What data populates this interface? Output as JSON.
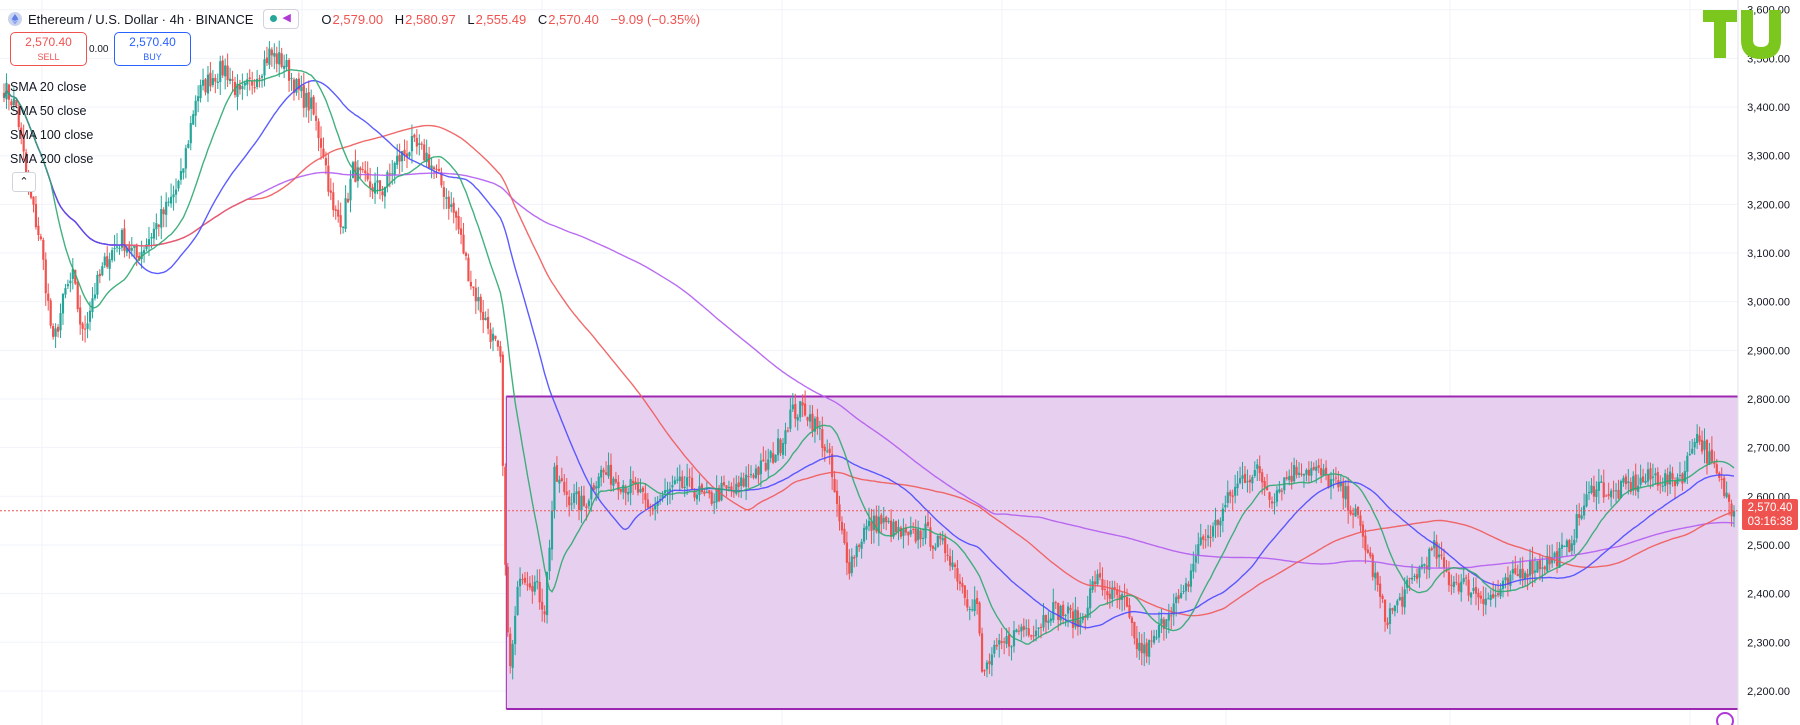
{
  "header": {
    "symbol_title": "Ethereum / U.S. Dollar · 4h · BINANCE",
    "ohlc": {
      "o_label": "O",
      "o": "2,579.00",
      "h_label": "H",
      "h": "2,580.97",
      "l_label": "L",
      "l": "2,555.49",
      "c_label": "C",
      "c": "2,570.40",
      "change": "−9.09 (−0.35%)"
    }
  },
  "trade": {
    "sell_price": "2,570.40",
    "sell_label": "SELL",
    "spread": "0.00",
    "buy_price": "2,570.40",
    "buy_label": "BUY"
  },
  "indicators": [
    {
      "label": "SMA 20 close",
      "color": "#26a69a"
    },
    {
      "label": "SMA 50 close",
      "color": "#2962ff"
    },
    {
      "label": "SMA 100 close",
      "color": "#ef5350"
    },
    {
      "label": "SMA 200 close",
      "color": "#b03ad6"
    }
  ],
  "collapse_icon": "chevron-up-icon",
  "price_label": {
    "price": "2,570.40",
    "countdown": "03:16:38",
    "color": "#ef5350"
  },
  "colors": {
    "up": "#26a69a",
    "down": "#ef5350",
    "sma20": "#2ea870",
    "sma50": "#4a4aff",
    "sma100": "#f05a5a",
    "sma200": "#b35cf0",
    "range_fill": "#e3c8ec",
    "range_line": "#9c27b0",
    "logo": "#7bc71d"
  },
  "chart_data": {
    "type": "candlestick",
    "timeframe": "4h",
    "y_ticks": [
      2200,
      2300,
      2400,
      2500,
      2600,
      2700,
      2800,
      2900,
      3000,
      3100,
      3200,
      3300,
      3400,
      3500,
      3600
    ],
    "y_tick_labels": [
      "2,200.00",
      "2,300.00",
      "2,400.00",
      "2,500.00",
      "2,600.00",
      "2,700.00",
      "2,800.00",
      "2,900.00",
      "3,000.00",
      "3,100.00",
      "3,200.00",
      "3,300.00",
      "3,400.00",
      "3,500.00",
      "3,600.00"
    ],
    "y_range": [
      2130,
      3620
    ],
    "last_price": 2570.4,
    "anchors": [
      [
        0,
        3440
      ],
      [
        5,
        3400
      ],
      [
        10,
        3230
      ],
      [
        15,
        3120
      ],
      [
        20,
        2910
      ],
      [
        25,
        3020
      ],
      [
        28,
        3050
      ],
      [
        32,
        2930
      ],
      [
        36,
        3010
      ],
      [
        42,
        3090
      ],
      [
        48,
        3130
      ],
      [
        54,
        3090
      ],
      [
        60,
        3140
      ],
      [
        66,
        3190
      ],
      [
        72,
        3250
      ],
      [
        78,
        3420
      ],
      [
        84,
        3460
      ],
      [
        90,
        3480
      ],
      [
        96,
        3420
      ],
      [
        102,
        3460
      ],
      [
        108,
        3510
      ],
      [
        114,
        3490
      ],
      [
        120,
        3430
      ],
      [
        125,
        3400
      ],
      [
        130,
        3310
      ],
      [
        134,
        3180
      ],
      [
        138,
        3170
      ],
      [
        142,
        3270
      ],
      [
        148,
        3240
      ],
      [
        154,
        3230
      ],
      [
        160,
        3290
      ],
      [
        166,
        3320
      ],
      [
        172,
        3300
      ],
      [
        178,
        3240
      ],
      [
        184,
        3170
      ],
      [
        190,
        3040
      ],
      [
        196,
        2960
      ],
      [
        200,
        2910
      ],
      [
        202,
        2870
      ],
      [
        204,
        2440
      ],
      [
        206,
        2240
      ],
      [
        210,
        2450
      ],
      [
        216,
        2420
      ],
      [
        220,
        2370
      ],
      [
        224,
        2640
      ],
      [
        230,
        2600
      ],
      [
        236,
        2580
      ],
      [
        242,
        2650
      ],
      [
        248,
        2640
      ],
      [
        254,
        2620
      ],
      [
        258,
        2610
      ],
      [
        262,
        2570
      ],
      [
        268,
        2600
      ],
      [
        274,
        2620
      ],
      [
        280,
        2620
      ],
      [
        286,
        2590
      ],
      [
        292,
        2610
      ],
      [
        298,
        2610
      ],
      [
        304,
        2650
      ],
      [
        310,
        2660
      ],
      [
        316,
        2710
      ],
      [
        320,
        2770
      ],
      [
        326,
        2780
      ],
      [
        332,
        2730
      ],
      [
        336,
        2670
      ],
      [
        340,
        2540
      ],
      [
        344,
        2460
      ],
      [
        350,
        2530
      ],
      [
        356,
        2550
      ],
      [
        362,
        2530
      ],
      [
        368,
        2510
      ],
      [
        374,
        2530
      ],
      [
        380,
        2500
      ],
      [
        384,
        2490
      ],
      [
        388,
        2440
      ],
      [
        392,
        2390
      ],
      [
        396,
        2380
      ],
      [
        398,
        2230
      ],
      [
        402,
        2270
      ],
      [
        408,
        2300
      ],
      [
        414,
        2330
      ],
      [
        420,
        2330
      ],
      [
        426,
        2370
      ],
      [
        432,
        2360
      ],
      [
        438,
        2340
      ],
      [
        444,
        2430
      ],
      [
        450,
        2400
      ],
      [
        456,
        2380
      ],
      [
        460,
        2300
      ],
      [
        464,
        2280
      ],
      [
        468,
        2300
      ],
      [
        474,
        2370
      ],
      [
        480,
        2390
      ],
      [
        486,
        2500
      ],
      [
        492,
        2530
      ],
      [
        498,
        2590
      ],
      [
        504,
        2640
      ],
      [
        510,
        2650
      ],
      [
        516,
        2600
      ],
      [
        522,
        2640
      ],
      [
        528,
        2660
      ],
      [
        534,
        2650
      ],
      [
        540,
        2630
      ],
      [
        546,
        2600
      ],
      [
        550,
        2560
      ],
      [
        554,
        2500
      ],
      [
        558,
        2430
      ],
      [
        562,
        2350
      ],
      [
        566,
        2370
      ],
      [
        570,
        2400
      ],
      [
        576,
        2450
      ],
      [
        582,
        2490
      ],
      [
        588,
        2430
      ],
      [
        594,
        2420
      ],
      [
        600,
        2400
      ],
      [
        606,
        2390
      ],
      [
        612,
        2420
      ],
      [
        618,
        2450
      ],
      [
        624,
        2460
      ],
      [
        630,
        2470
      ],
      [
        636,
        2490
      ],
      [
        642,
        2570
      ],
      [
        648,
        2630
      ],
      [
        654,
        2600
      ],
      [
        660,
        2620
      ],
      [
        666,
        2630
      ],
      [
        672,
        2640
      ],
      [
        678,
        2630
      ],
      [
        684,
        2650
      ],
      [
        688,
        2730
      ],
      [
        692,
        2700
      ],
      [
        696,
        2650
      ],
      [
        700,
        2610
      ],
      [
        704,
        2570
      ]
    ],
    "range_box": {
      "low": 2163,
      "high": 2805,
      "x_start": 204
    }
  }
}
